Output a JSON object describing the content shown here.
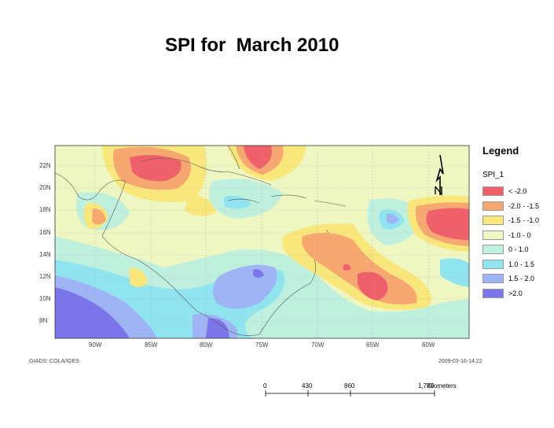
{
  "title": "SPI for  March 2010",
  "legend": {
    "title": "Legend",
    "field": "SPI_1",
    "classes": [
      {
        "label": "< -2.0",
        "color": "#f0606a"
      },
      {
        "label": "-2.0 - -1.5",
        "color": "#f7a870"
      },
      {
        "label": "-1.5 - -1.0",
        "color": "#f9e77c"
      },
      {
        "label": "-1.0 - 0",
        "color": "#eef7c2"
      },
      {
        "label": "0 - 1.0",
        "color": "#bff0de"
      },
      {
        "label": "1.0 - 1.5",
        "color": "#8fe4f0"
      },
      {
        "label": "1.5 - 2.0",
        "color": "#9eb4f4"
      },
      {
        "label": ">2.0",
        "color": "#7b74ea"
      }
    ]
  },
  "latitudes": [
    "22N",
    "20N",
    "18N",
    "16N",
    "14N",
    "12N",
    "10N",
    "8N"
  ],
  "longitudes": [
    "90W",
    "85W",
    "80W",
    "75W",
    "70W",
    "65W",
    "60W"
  ],
  "footer_left": "GrADS: COLA/IGES",
  "footer_right": "2009-03-16-14:22",
  "scale": {
    "ticks": [
      "0",
      "430",
      "860",
      "1,720"
    ],
    "unit": "Kilometers"
  }
}
